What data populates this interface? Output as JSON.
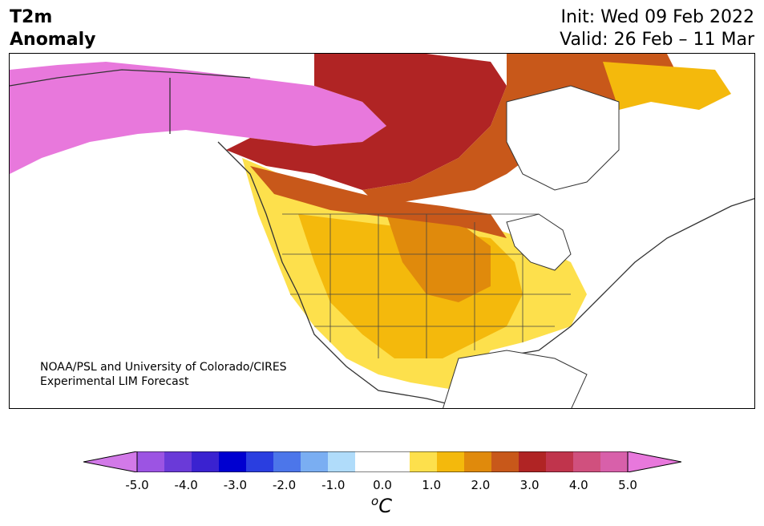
{
  "header": {
    "title_line1": "T2m",
    "title_line2": "Anomaly",
    "init": "Init: Wed 09 Feb 2022",
    "valid": "Valid: 26 Feb – 11 Mar"
  },
  "credit": {
    "line1": "NOAA/PSL and University of Colorado/CIRES",
    "line2": "Experimental LIM Forecast"
  },
  "colorbar": {
    "colors": [
      "#d279e8",
      "#9c54e3",
      "#6a3ad8",
      "#3a22d0",
      "#0000d0",
      "#2a3ee0",
      "#4c76ea",
      "#7aaef2",
      "#b0dcfa",
      "#ffffff",
      "#ffffff",
      "#fde04c",
      "#f4b90c",
      "#e08a0c",
      "#c8581a",
      "#b02424",
      "#c0344c",
      "#d0507e",
      "#d860aa",
      "#e878dc"
    ],
    "ticks": [
      "-5.0",
      "-4.0",
      "-3.0",
      "-2.0",
      "-1.0",
      "0.0",
      "1.0",
      "2.0",
      "3.0",
      "4.0",
      "5.0"
    ],
    "unit_sup": "o",
    "unit": "C"
  }
}
